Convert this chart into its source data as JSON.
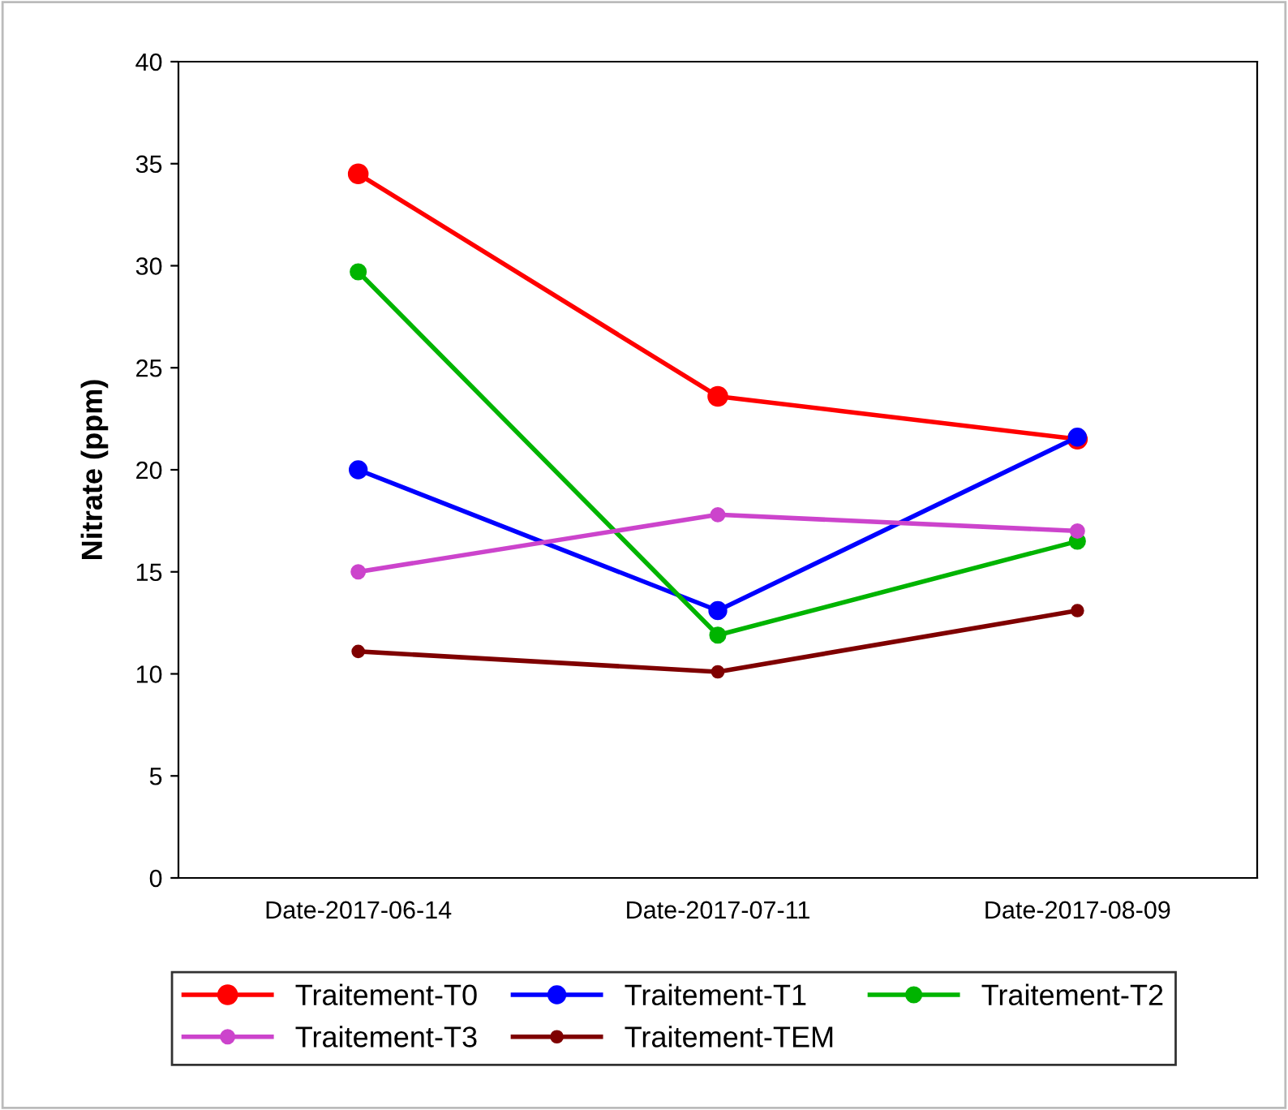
{
  "chart_data": {
    "type": "line",
    "ylabel": "Nitrate (ppm)",
    "categories": [
      "Date-2017-06-14",
      "Date-2017-07-11",
      "Date-2017-08-09"
    ],
    "series": [
      {
        "name": "Traitement-T0",
        "color": "#ff0000",
        "values": [
          34.5,
          23.6,
          21.5
        ]
      },
      {
        "name": "Traitement-T1",
        "color": "#0000ff",
        "values": [
          20.0,
          13.1,
          21.6
        ]
      },
      {
        "name": "Traitement-T2",
        "color": "#00b400",
        "values": [
          29.7,
          11.9,
          16.5
        ]
      },
      {
        "name": "Traitement-T3",
        "color": "#cc44cc",
        "values": [
          15.0,
          17.8,
          17.0
        ]
      },
      {
        "name": "Traitement-TEM",
        "color": "#7f0000",
        "values": [
          11.1,
          10.1,
          13.1
        ]
      }
    ],
    "ylim": [
      0,
      40
    ],
    "yticks": [
      0,
      5,
      10,
      15,
      20,
      25,
      30,
      35,
      40
    ],
    "grid": false,
    "legend": "bottom",
    "marker": "circle",
    "line_style": "solid"
  }
}
